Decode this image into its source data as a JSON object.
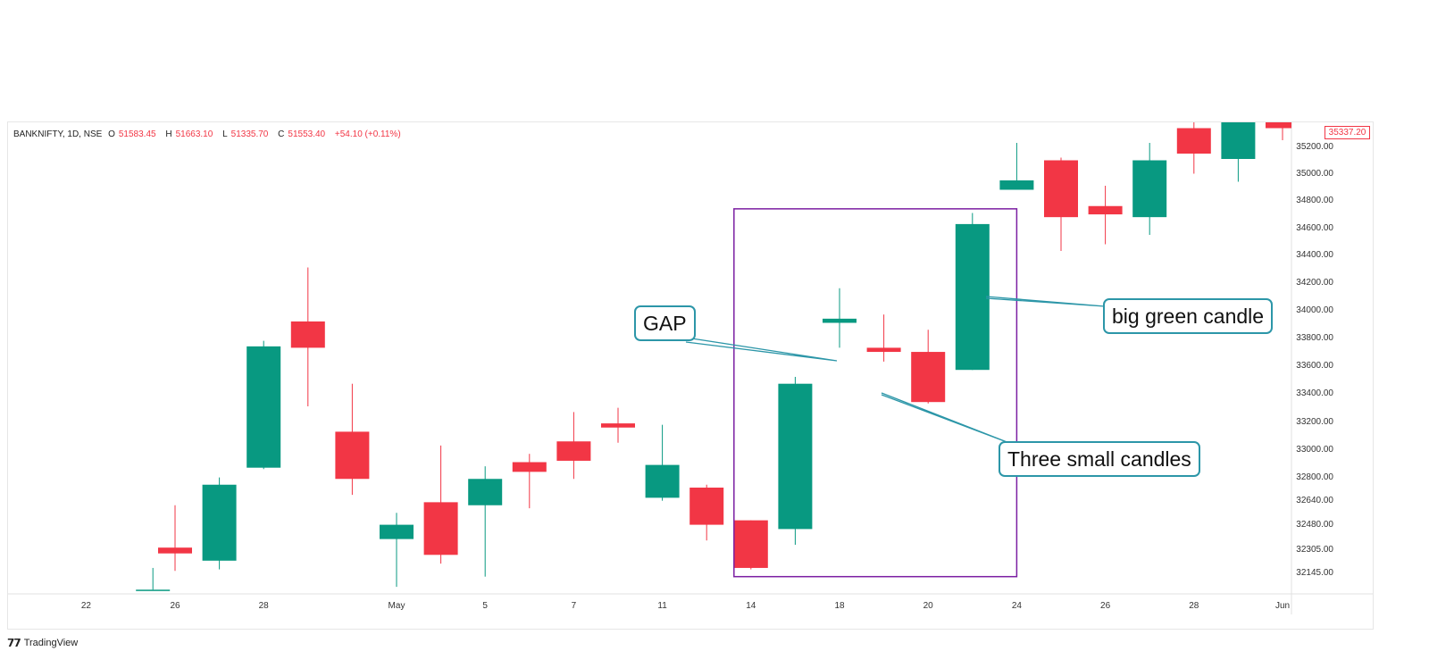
{
  "header": {
    "symbol": "BANKNIFTY, 1D, NSE",
    "open_label": "O",
    "open": "51583.45",
    "high_label": "H",
    "high": "51663.10",
    "low_label": "L",
    "low": "51335.70",
    "close_label": "C",
    "close": "51553.40",
    "change": "+54.10 (+0.11%)"
  },
  "current_price": "35337.20",
  "brand": "TradingView",
  "annotations": {
    "gap": "GAP",
    "big_green": "big green candle",
    "three_small": "Three small candles"
  },
  "colors": {
    "up": "#089981",
    "down": "#f23645",
    "box": "#7b1fa2",
    "callout": "#2c96a8"
  },
  "chart_data": {
    "type": "candlestick",
    "y_ticks": [
      32145.0,
      32305.0,
      32480.0,
      32640.0,
      32800.0,
      33000.0,
      33200.0,
      33400.0,
      33600.0,
      33800.0,
      34000.0,
      34200.0,
      34400.0,
      34600.0,
      34800.0,
      35000.0,
      35200.0
    ],
    "y_tick_labels": [
      "32145.00",
      "32305.00",
      "32480.00",
      "32640.00",
      "32800.00",
      "33000.00",
      "33200.00",
      "33400.00",
      "33600.00",
      "33800.00",
      "34000.00",
      "34200.00",
      "34400.00",
      "34600.00",
      "34800.00",
      "35000.00",
      "35200.00"
    ],
    "x_tick_labels": [
      "22",
      "26",
      "28",
      "May",
      "5",
      "7",
      "11",
      "14",
      "18",
      "20",
      "24",
      "26",
      "28",
      "Jun"
    ],
    "x_tick_index": [
      -1,
      0,
      2,
      5,
      7,
      9,
      11,
      13,
      15,
      17,
      19,
      21,
      23,
      25
    ],
    "candles": [
      {
        "i": -0.5,
        "o": 32020,
        "h": 32170,
        "l": 32020,
        "c": 32020
      },
      {
        "i": 0,
        "o": 32310,
        "h": 32600,
        "l": 32150,
        "c": 32270
      },
      {
        "i": 1,
        "o": 32220,
        "h": 32790,
        "l": 32160,
        "c": 32740
      },
      {
        "i": 2,
        "o": 32860,
        "h": 33770,
        "l": 32850,
        "c": 33730
      },
      {
        "i": 3,
        "o": 33910,
        "h": 34300,
        "l": 33300,
        "c": 33720
      },
      {
        "i": 4,
        "o": 33120,
        "h": 33460,
        "l": 32670,
        "c": 32780
      },
      {
        "i": 5,
        "o": 32370,
        "h": 32550,
        "l": 32040,
        "c": 32470
      },
      {
        "i": 6,
        "o": 32620,
        "h": 33020,
        "l": 32200,
        "c": 32260
      },
      {
        "i": 7,
        "o": 32600,
        "h": 32870,
        "l": 32110,
        "c": 32780
      },
      {
        "i": 8,
        "o": 32900,
        "h": 32960,
        "l": 32580,
        "c": 32830
      },
      {
        "i": 9,
        "o": 33050,
        "h": 33260,
        "l": 32780,
        "c": 32910
      },
      {
        "i": 10,
        "o": 33180,
        "h": 33290,
        "l": 33040,
        "c": 33150
      },
      {
        "i": 11,
        "o": 32650,
        "h": 33170,
        "l": 32630,
        "c": 32880
      },
      {
        "i": 12,
        "o": 32720,
        "h": 32740,
        "l": 32360,
        "c": 32470
      },
      {
        "i": 13,
        "o": 32500,
        "h": 32500,
        "l": 32160,
        "c": 32170
      },
      {
        "i": 14,
        "o": 32440,
        "h": 33510,
        "l": 32330,
        "c": 33460
      },
      {
        "i": 15,
        "o": 33900,
        "h": 34150,
        "l": 33720,
        "c": 33930
      },
      {
        "i": 16,
        "o": 33720,
        "h": 33960,
        "l": 33620,
        "c": 33690
      },
      {
        "i": 17,
        "o": 33690,
        "h": 33850,
        "l": 33320,
        "c": 33330
      },
      {
        "i": 18,
        "o": 33560,
        "h": 34700,
        "l": 33560,
        "c": 34620
      },
      {
        "i": 19,
        "o": 34870,
        "h": 35220,
        "l": 34870,
        "c": 34940
      },
      {
        "i": 20,
        "o": 35090,
        "h": 35110,
        "l": 34420,
        "c": 34670
      },
      {
        "i": 21,
        "o": 34750,
        "h": 34900,
        "l": 34470,
        "c": 34690
      },
      {
        "i": 22,
        "o": 34670,
        "h": 35220,
        "l": 34540,
        "c": 35090
      },
      {
        "i": 23,
        "o": 35330,
        "h": 35390,
        "l": 34990,
        "c": 35140
      },
      {
        "i": 24,
        "o": 35100,
        "h": 35400,
        "l": 34930,
        "c": 35390
      },
      {
        "i": 25,
        "o": 35390,
        "h": 35420,
        "l": 35240,
        "c": 35330
      }
    ],
    "highlight_box": {
      "i_start": 13,
      "i_end": 19,
      "y_top": 34730,
      "y_bottom": 32110
    }
  }
}
